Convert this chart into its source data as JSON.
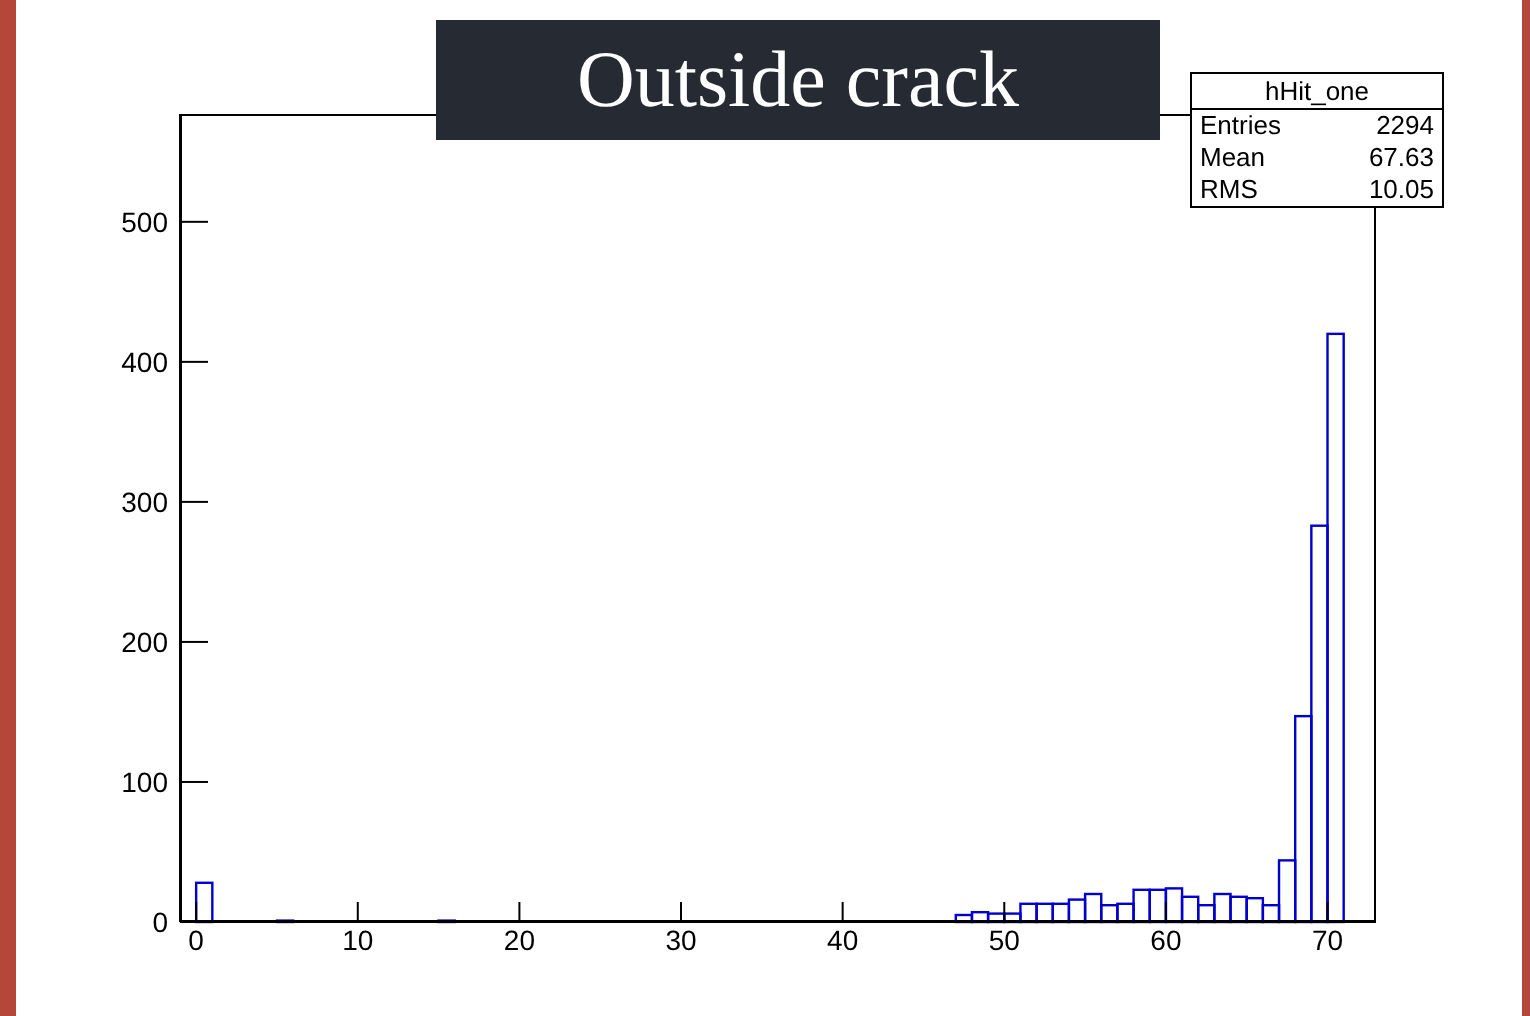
{
  "chart_data": {
    "type": "histogram",
    "title": "Outside crack",
    "annotations": [
      "hHit_one",
      "Entries",
      "2294",
      "Mean",
      "67.63",
      "RMS",
      "10.05"
    ],
    "bins": [
      0,
      1,
      2,
      3,
      4,
      5,
      6,
      7,
      8,
      9,
      10,
      11,
      12,
      13,
      14,
      15,
      16,
      17,
      18,
      19,
      20,
      21,
      22,
      23,
      24,
      25,
      26,
      27,
      28,
      29,
      30,
      31,
      32,
      33,
      34,
      35,
      36,
      37,
      38,
      39,
      40,
      41,
      42,
      43,
      44,
      45,
      46,
      47,
      48,
      49,
      50,
      51,
      52,
      53,
      54,
      55,
      56,
      57,
      58,
      59,
      60,
      61,
      62,
      63,
      64,
      65,
      66,
      67,
      68,
      69,
      70,
      71,
      72,
      73
    ],
    "values": [
      28,
      0,
      0,
      0,
      0,
      1,
      0,
      0,
      0,
      0,
      0,
      0,
      0,
      0,
      0,
      1,
      0,
      0,
      0,
      0,
      0,
      0,
      0,
      0,
      0,
      0,
      0,
      0,
      0,
      0,
      0,
      0,
      0,
      0,
      0,
      0,
      0,
      0,
      0,
      0,
      0,
      0,
      0,
      0,
      0,
      0,
      0,
      5,
      7,
      6,
      6,
      13,
      13,
      13,
      16,
      20,
      12,
      13,
      23,
      23,
      24,
      18,
      12,
      20,
      18,
      17,
      12,
      44,
      147,
      283,
      420,
      null,
      null
    ],
    "color": "#0000cc",
    "xlim": [
      -1,
      73
    ],
    "xticks": [
      0,
      10,
      20,
      30,
      40,
      50,
      60,
      70
    ],
    "ylim": [
      0,
      577
    ],
    "yticks": [
      0,
      100,
      200,
      300,
      400,
      500
    ],
    "grid": false
  }
}
